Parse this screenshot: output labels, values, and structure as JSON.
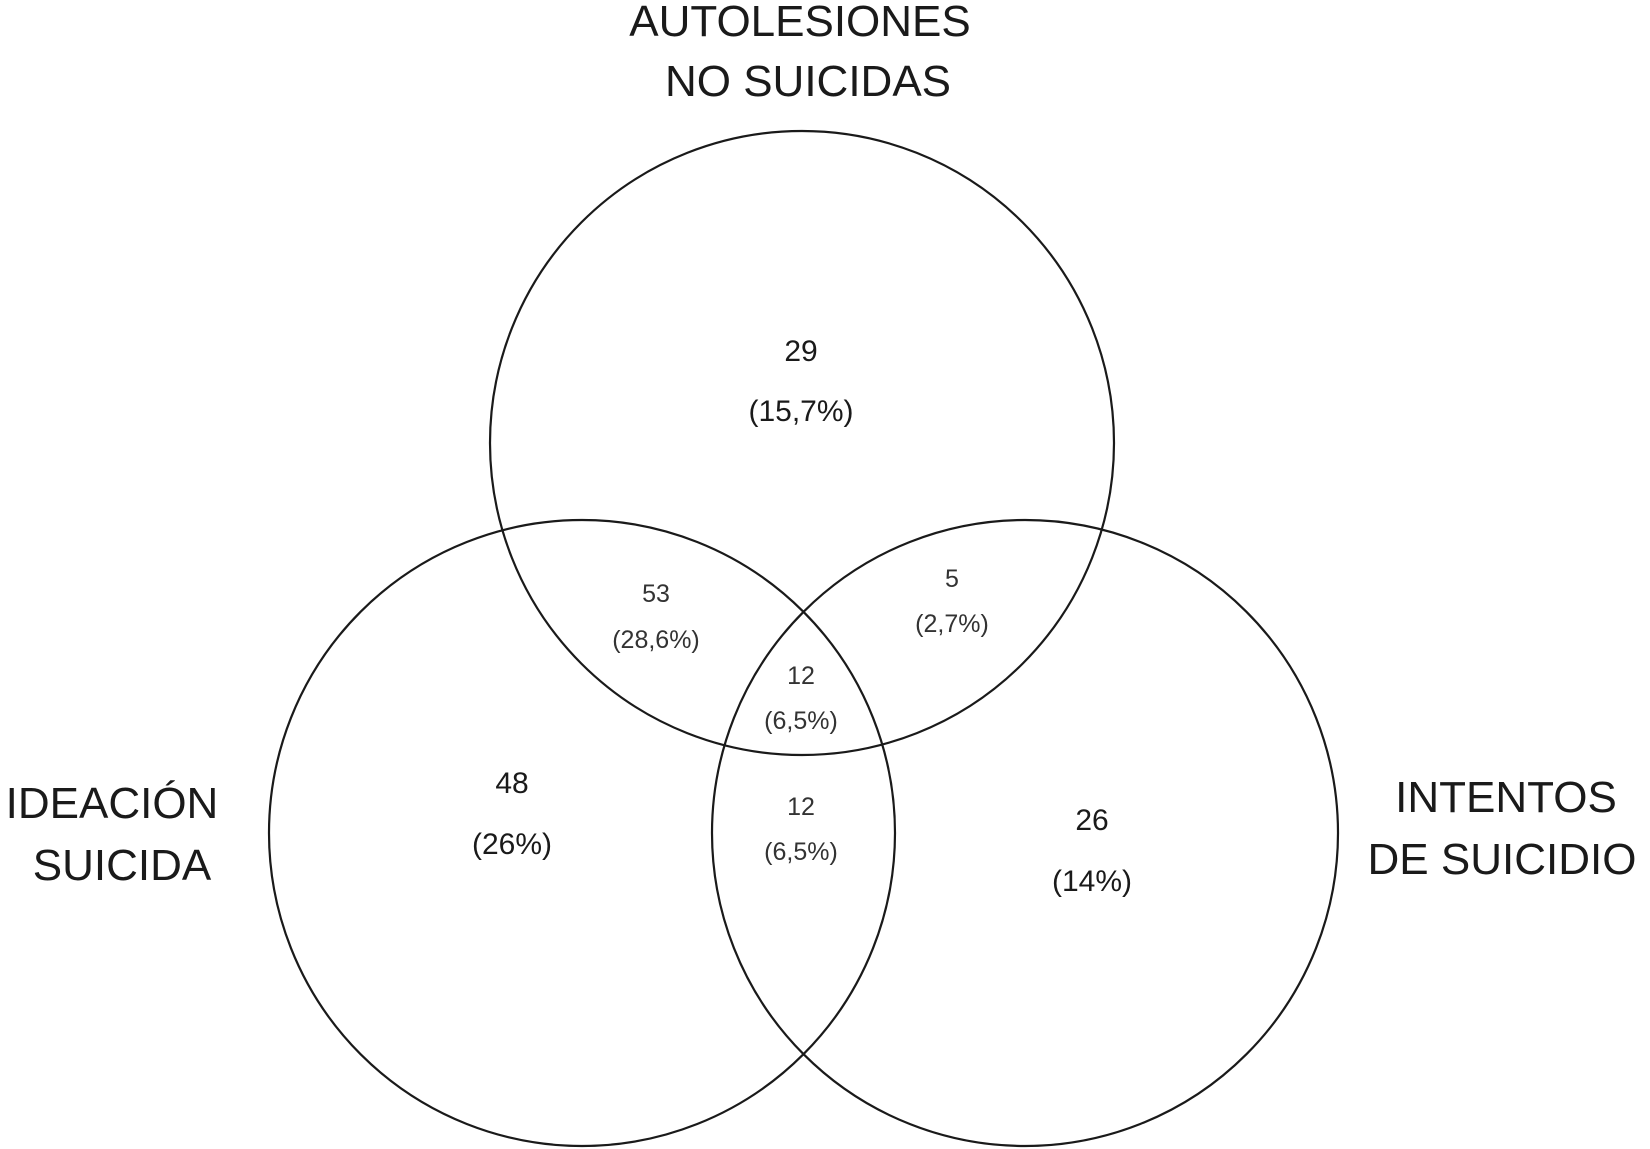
{
  "sets": {
    "autolesiones": {
      "line1": "AUTOLESIONES",
      "line2": "NO SUICIDAS"
    },
    "ideacion": {
      "line1": "IDEACIÓN",
      "line2": "SUICIDA"
    },
    "intentos": {
      "line1": "INTENTOS",
      "line2": "DE SUICIDIO"
    }
  },
  "regions": {
    "autolesiones_only": {
      "count": "29",
      "pct": "(15,7%)"
    },
    "ideacion_only": {
      "count": "48",
      "pct": "(26%)"
    },
    "intentos_only": {
      "count": "26",
      "pct": "(14%)"
    },
    "autolesiones_ideacion": {
      "count": "53",
      "pct": "(28,6%)"
    },
    "autolesiones_intentos": {
      "count": "5",
      "pct": "(2,7%)"
    },
    "all_three": {
      "count": "12",
      "pct": "(6,5%)"
    },
    "ideacion_intentos": {
      "count": "12",
      "pct": "(6,5%)"
    }
  },
  "colors": {
    "stroke": "#1a1a1a",
    "text": "#1a1a1a",
    "background": "#ffffff"
  }
}
